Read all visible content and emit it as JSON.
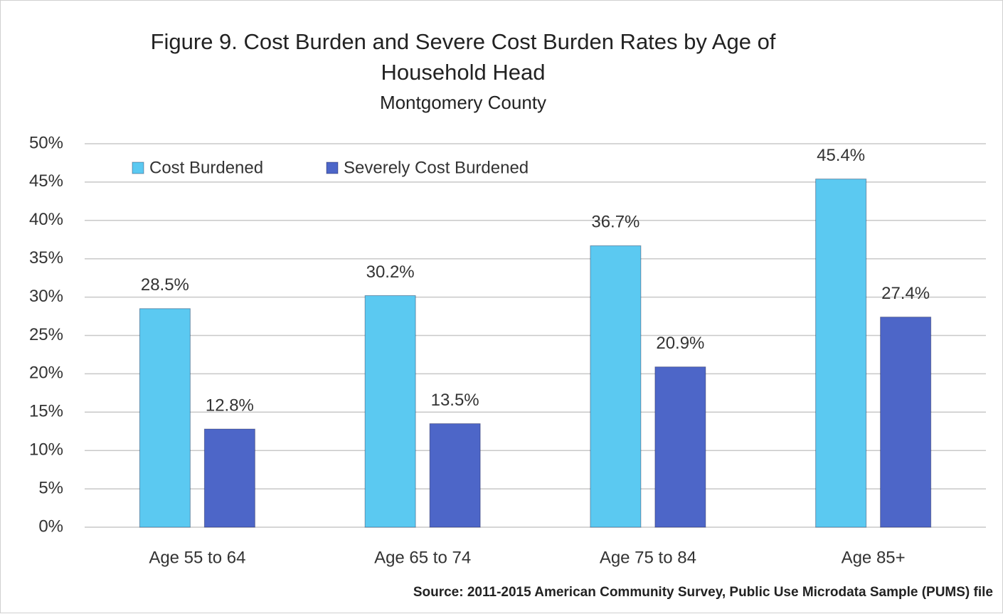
{
  "chart_data": {
    "type": "bar",
    "title": "Figure 9. Cost Burden and Severe Cost Burden Rates by Age of Household Head",
    "subtitle": "Montgomery County",
    "source": "Source: 2011-2015 American Community Survey, Public Use Microdata Sample (PUMS) file",
    "categories": [
      "Age 55 to 64",
      "Age 65 to 74",
      "Age 75 to 84",
      "Age 85+"
    ],
    "series": [
      {
        "name": "Cost Burdened",
        "color": "#5bc9f1",
        "values": [
          28.5,
          30.2,
          36.7,
          45.4
        ],
        "value_labels": [
          "28.5%",
          "30.2%",
          "36.7%",
          "45.4%"
        ]
      },
      {
        "name": "Severely Cost Burdened",
        "color": "#4d66c8",
        "values": [
          12.8,
          13.5,
          20.9,
          27.4
        ],
        "value_labels": [
          "12.8%",
          "13.5%",
          "20.9%",
          "27.4%"
        ]
      }
    ],
    "ylim": [
      0,
      50
    ],
    "yticks": [
      {
        "value": 0,
        "label": "0%"
      },
      {
        "value": 5,
        "label": "5%"
      },
      {
        "value": 10,
        "label": "10%"
      },
      {
        "value": 15,
        "label": "15%"
      },
      {
        "value": 20,
        "label": "20%"
      },
      {
        "value": 25,
        "label": "25%"
      },
      {
        "value": 30,
        "label": "30%"
      },
      {
        "value": 35,
        "label": "35%"
      },
      {
        "value": 40,
        "label": "40%"
      },
      {
        "value": 45,
        "label": "45%"
      },
      {
        "value": 50,
        "label": "50%"
      }
    ],
    "grid": true,
    "legend": "top-left"
  }
}
